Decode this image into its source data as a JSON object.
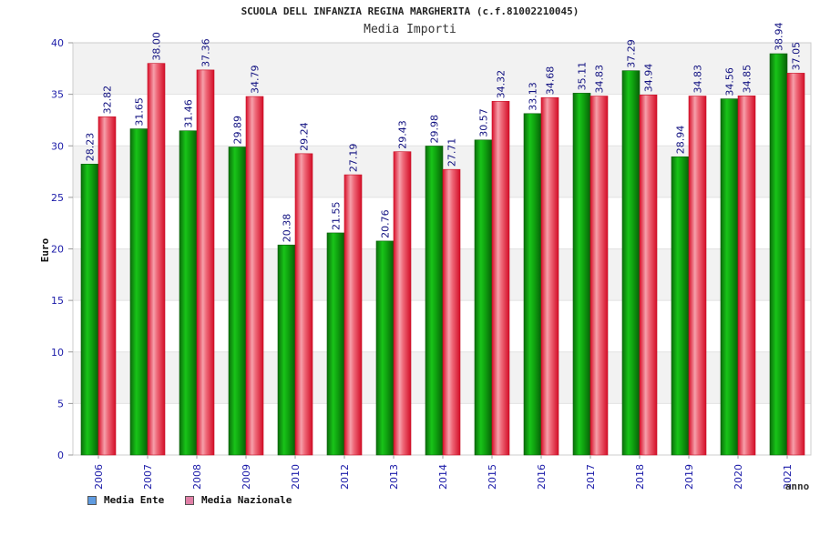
{
  "chart_data": {
    "type": "bar",
    "title": "SCUOLA DELL INFANZIA REGINA MARGHERITA (c.f.81002210045)",
    "subtitle": "Media Importi",
    "ylabel": "Euro",
    "xlabel": "anno",
    "ylim": [
      0,
      40
    ],
    "yticks": [
      0,
      5,
      10,
      15,
      20,
      25,
      30,
      35,
      40
    ],
    "categories": [
      "2006",
      "2007",
      "2008",
      "2009",
      "2010",
      "2012",
      "2013",
      "2014",
      "2015",
      "2016",
      "2017",
      "2018",
      "2019",
      "2020",
      "2021"
    ],
    "series": [
      {
        "name": "Media Ente",
        "color": "#1fa51f",
        "values": [
          28.23,
          31.65,
          31.46,
          29.89,
          20.38,
          21.55,
          20.76,
          29.98,
          30.57,
          33.13,
          35.11,
          37.29,
          28.94,
          34.56,
          38.94
        ],
        "labels": [
          "28.23",
          "31.65",
          "31.46",
          "29.89",
          "20.38",
          "21.55",
          "20.76",
          "29.98",
          "30.57",
          "33.13",
          "35.11",
          "37.29",
          "28.94",
          "34.56",
          "38.94"
        ]
      },
      {
        "name": "Media Nazionale",
        "color": "#e8485a",
        "values": [
          32.82,
          38.0,
          37.36,
          34.79,
          29.24,
          27.19,
          29.43,
          27.71,
          34.32,
          34.68,
          34.83,
          34.94,
          34.83,
          34.85,
          37.05
        ],
        "labels": [
          "32.82",
          "38.00",
          "37.36",
          "34.79",
          "29.24",
          "27.19",
          "29.43",
          "27.71",
          "34.32",
          "34.68",
          "34.83",
          "34.94",
          "34.83",
          "34.85",
          "37.05"
        ]
      }
    ],
    "legend": {
      "position": "bottom-left",
      "items": [
        {
          "label": "Media Ente",
          "color": "#5f9be0"
        },
        {
          "label": "Media Nazionale",
          "color": "#e07fa6"
        }
      ]
    },
    "grid": true
  }
}
